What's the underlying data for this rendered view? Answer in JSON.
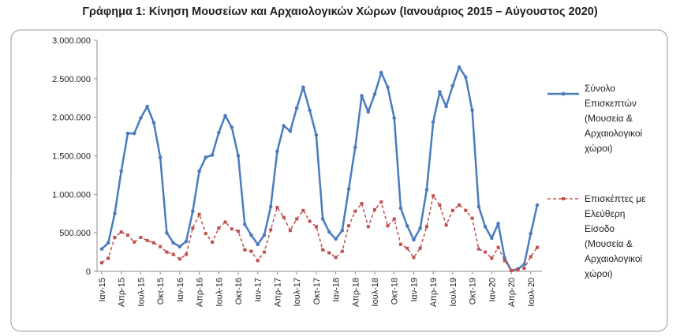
{
  "title": "Γράφημα 1: Κίνηση Μουσείων και Αρχαιολογικών Χώρων (Ιανουάριος 2015 – Αύγουστος 2020)",
  "colors": {
    "series1": "#4a7bbf",
    "series2": "#c0504d",
    "axis": "#8c8c8c",
    "frame": "#9a9a9a"
  },
  "chart_data": {
    "type": "line",
    "title": "Γράφημα 1: Κίνηση Μουσείων και Αρχαιολογικών Χώρων (Ιανουάριος 2015 – Αύγουστος 2020)",
    "xlabel": "",
    "ylabel": "",
    "ylim": [
      0,
      3000000
    ],
    "yticks": [
      0,
      500000,
      1000000,
      1500000,
      2000000,
      2500000,
      3000000
    ],
    "ytick_labels": [
      "0",
      "500.000",
      "1.000.000",
      "1.500.000",
      "2.000.000",
      "2.500.000",
      "3.000.000"
    ],
    "x": [
      "Ιαν-15",
      "Φεβ-15",
      "Μαρ-15",
      "Απρ-15",
      "Μαϊ-15",
      "Ιουν-15",
      "Ιουλ-15",
      "Αυγ-15",
      "Σεπ-15",
      "Οκτ-15",
      "Νοε-15",
      "Δεκ-15",
      "Ιαν-16",
      "Φεβ-16",
      "Μαρ-16",
      "Απρ-16",
      "Μαϊ-16",
      "Ιουν-16",
      "Ιουλ-16",
      "Αυγ-16",
      "Σεπ-16",
      "Οκτ-16",
      "Νοε-16",
      "Δεκ-16",
      "Ιαν-17",
      "Φεβ-17",
      "Μαρ-17",
      "Απρ-17",
      "Μαϊ-17",
      "Ιουν-17",
      "Ιουλ-17",
      "Αυγ-17",
      "Σεπ-17",
      "Οκτ-17",
      "Νοε-17",
      "Δεκ-17",
      "Ιαν-18",
      "Φεβ-18",
      "Μαρ-18",
      "Απρ-18",
      "Μαϊ-18",
      "Ιουν-18",
      "Ιουλ-18",
      "Αυγ-18",
      "Σεπ-18",
      "Οκτ-18",
      "Νοε-18",
      "Δεκ-18",
      "Ιαν-19",
      "Φεβ-19",
      "Μαρ-19",
      "Απρ-19",
      "Μαϊ-19",
      "Ιουν-19",
      "Ιουλ-19",
      "Αυγ-19",
      "Σεπ-19",
      "Οκτ-19",
      "Νοε-19",
      "Δεκ-19",
      "Ιαν-20",
      "Φεβ-20",
      "Μαρ-20",
      "Απρ-20",
      "Μαϊ-20",
      "Ιουν-20",
      "Ιουλ-20",
      "Αυγ-20"
    ],
    "xtick_labels": [
      {
        "index": 0,
        "label": "Ιαν-15"
      },
      {
        "index": 3,
        "label": "Απρ-15"
      },
      {
        "index": 6,
        "label": "Ιουλ-15"
      },
      {
        "index": 9,
        "label": "Οκτ-15"
      },
      {
        "index": 12,
        "label": "Ιαν-16"
      },
      {
        "index": 15,
        "label": "Απρ-16"
      },
      {
        "index": 18,
        "label": "Ιουλ-16"
      },
      {
        "index": 21,
        "label": "Οκτ-16"
      },
      {
        "index": 24,
        "label": "Ιαν-17"
      },
      {
        "index": 27,
        "label": "Απρ-17"
      },
      {
        "index": 30,
        "label": "Ιουλ-17"
      },
      {
        "index": 33,
        "label": "Οκτ-17"
      },
      {
        "index": 36,
        "label": "Ιαν-18"
      },
      {
        "index": 39,
        "label": "Απρ-18"
      },
      {
        "index": 42,
        "label": "Ιουλ-18"
      },
      {
        "index": 45,
        "label": "Οκτ-18"
      },
      {
        "index": 48,
        "label": "Ιαν-19"
      },
      {
        "index": 51,
        "label": "Απρ-19"
      },
      {
        "index": 54,
        "label": "Ιουλ-19"
      },
      {
        "index": 57,
        "label": "Οκτ-19"
      },
      {
        "index": 60,
        "label": "Ιαν-20"
      },
      {
        "index": 63,
        "label": "Απρ-20"
      },
      {
        "index": 66,
        "label": "Ιουλ-20"
      }
    ],
    "series": [
      {
        "name": "Σύνολο Επισκεπτών (Μουσεία & Αρχαιολογικοί χώροι)",
        "color": "#4a7bbf",
        "style": "solid",
        "marker": "circle",
        "values": [
          290000,
          370000,
          750000,
          1300000,
          1790000,
          1790000,
          1990000,
          2140000,
          1930000,
          1480000,
          500000,
          370000,
          320000,
          390000,
          780000,
          1300000,
          1480000,
          1510000,
          1800000,
          2020000,
          1870000,
          1500000,
          610000,
          470000,
          350000,
          470000,
          840000,
          1560000,
          1890000,
          1820000,
          2120000,
          2390000,
          2090000,
          1770000,
          680000,
          510000,
          420000,
          530000,
          1070000,
          1610000,
          2280000,
          2070000,
          2300000,
          2580000,
          2390000,
          1990000,
          820000,
          590000,
          410000,
          560000,
          1060000,
          1940000,
          2330000,
          2140000,
          2410000,
          2650000,
          2520000,
          2090000,
          840000,
          580000,
          430000,
          620000,
          170000,
          10000,
          30000,
          90000,
          490000,
          860000
        ]
      },
      {
        "name": "Επισκέπτες με Ελεύθερη Είσοδο (Μουσεία & Αρχαιολογικοί χώροι)",
        "color": "#c0504d",
        "style": "dashed",
        "marker": "square",
        "values": [
          110000,
          170000,
          440000,
          510000,
          470000,
          380000,
          440000,
          400000,
          370000,
          320000,
          250000,
          220000,
          160000,
          220000,
          560000,
          740000,
          490000,
          380000,
          560000,
          640000,
          550000,
          520000,
          280000,
          260000,
          140000,
          250000,
          540000,
          830000,
          700000,
          530000,
          680000,
          790000,
          650000,
          580000,
          280000,
          240000,
          180000,
          260000,
          590000,
          780000,
          880000,
          580000,
          800000,
          900000,
          590000,
          680000,
          350000,
          300000,
          180000,
          300000,
          580000,
          980000,
          860000,
          600000,
          790000,
          860000,
          790000,
          690000,
          290000,
          250000,
          170000,
          310000,
          140000,
          10000,
          20000,
          40000,
          190000,
          310000
        ]
      }
    ],
    "legend": {
      "position": "right"
    }
  }
}
